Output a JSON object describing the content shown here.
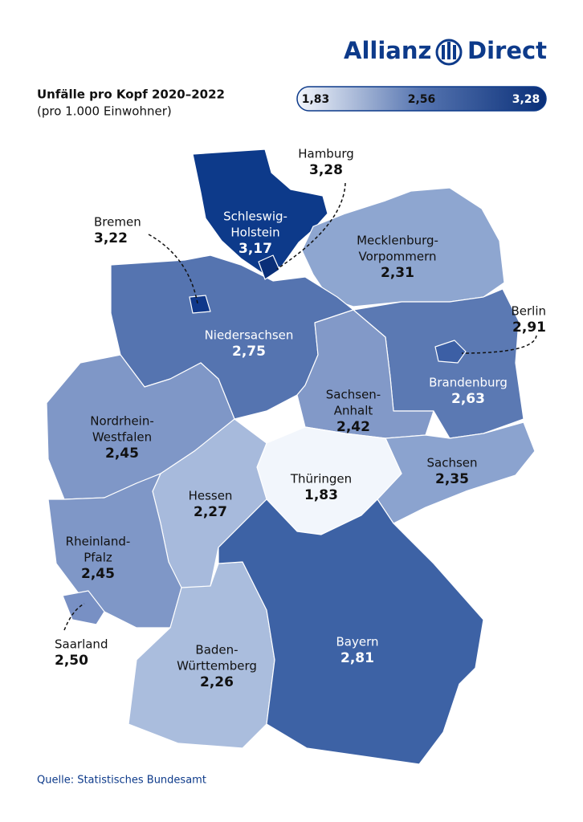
{
  "logo": {
    "left": "Allianz",
    "right": "Direct"
  },
  "title": "Unfälle pro Kopf 2020–2022",
  "subtitle": "(pro 1.000 Einwohner)",
  "legend": {
    "labels": [
      "1,83",
      "2,56",
      "3,28"
    ],
    "colors": [
      "#f4f7fc",
      "#5574b0",
      "#0a2f78"
    ]
  },
  "regions": [
    {
      "name": [
        "Schleswig-",
        "Holstein"
      ],
      "value": "3,17",
      "color": "#0d3a8a",
      "text_color": "#ffffff"
    },
    {
      "name": [
        "Hamburg"
      ],
      "value": "3,28",
      "color": "#0a2f78",
      "text_color": "#111111"
    },
    {
      "name": [
        "Bremen"
      ],
      "value": "3,22",
      "color": "#10388a",
      "text_color": "#111111"
    },
    {
      "name": [
        "Mecklenburg-",
        "Vorpommern"
      ],
      "value": "2,31",
      "color": "#8ea6d0",
      "text_color": "#111111"
    },
    {
      "name": [
        "Niedersachsen"
      ],
      "value": "2,75",
      "color": "#5574b0",
      "text_color": "#ffffff"
    },
    {
      "name": [
        "Berlin"
      ],
      "value": "2,91",
      "color": "#3c5fa5",
      "text_color": "#111111"
    },
    {
      "name": [
        "Brandenburg"
      ],
      "value": "2,63",
      "color": "#5b79b3",
      "text_color": "#ffffff"
    },
    {
      "name": [
        "Sachsen-",
        "Anhalt"
      ],
      "value": "2,42",
      "color": "#8299c8",
      "text_color": "#111111"
    },
    {
      "name": [
        "Nordrhein-",
        "Westfalen"
      ],
      "value": "2,45",
      "color": "#7f97c7",
      "text_color": "#111111"
    },
    {
      "name": [
        "Sachsen"
      ],
      "value": "2,35",
      "color": "#8ba3cf",
      "text_color": "#111111"
    },
    {
      "name": [
        "Thüringen"
      ],
      "value": "1,83",
      "color": "#f2f6fc",
      "text_color": "#111111"
    },
    {
      "name": [
        "Hessen"
      ],
      "value": "2,27",
      "color": "#a7badc",
      "text_color": "#111111"
    },
    {
      "name": [
        "Rheinland-",
        "Pfalz"
      ],
      "value": "2,45",
      "color": "#7f97c7",
      "text_color": "#111111"
    },
    {
      "name": [
        "Saarland"
      ],
      "value": "2,50",
      "color": "#7890c4",
      "text_color": "#111111"
    },
    {
      "name": [
        "Baden-",
        "Württemberg"
      ],
      "value": "2,26",
      "color": "#aabddd",
      "text_color": "#111111"
    },
    {
      "name": [
        "Bayern"
      ],
      "value": "2,81",
      "color": "#3d62a5",
      "text_color": "#ffffff"
    }
  ],
  "source": "Quelle: Statistisches Bundesamt"
}
